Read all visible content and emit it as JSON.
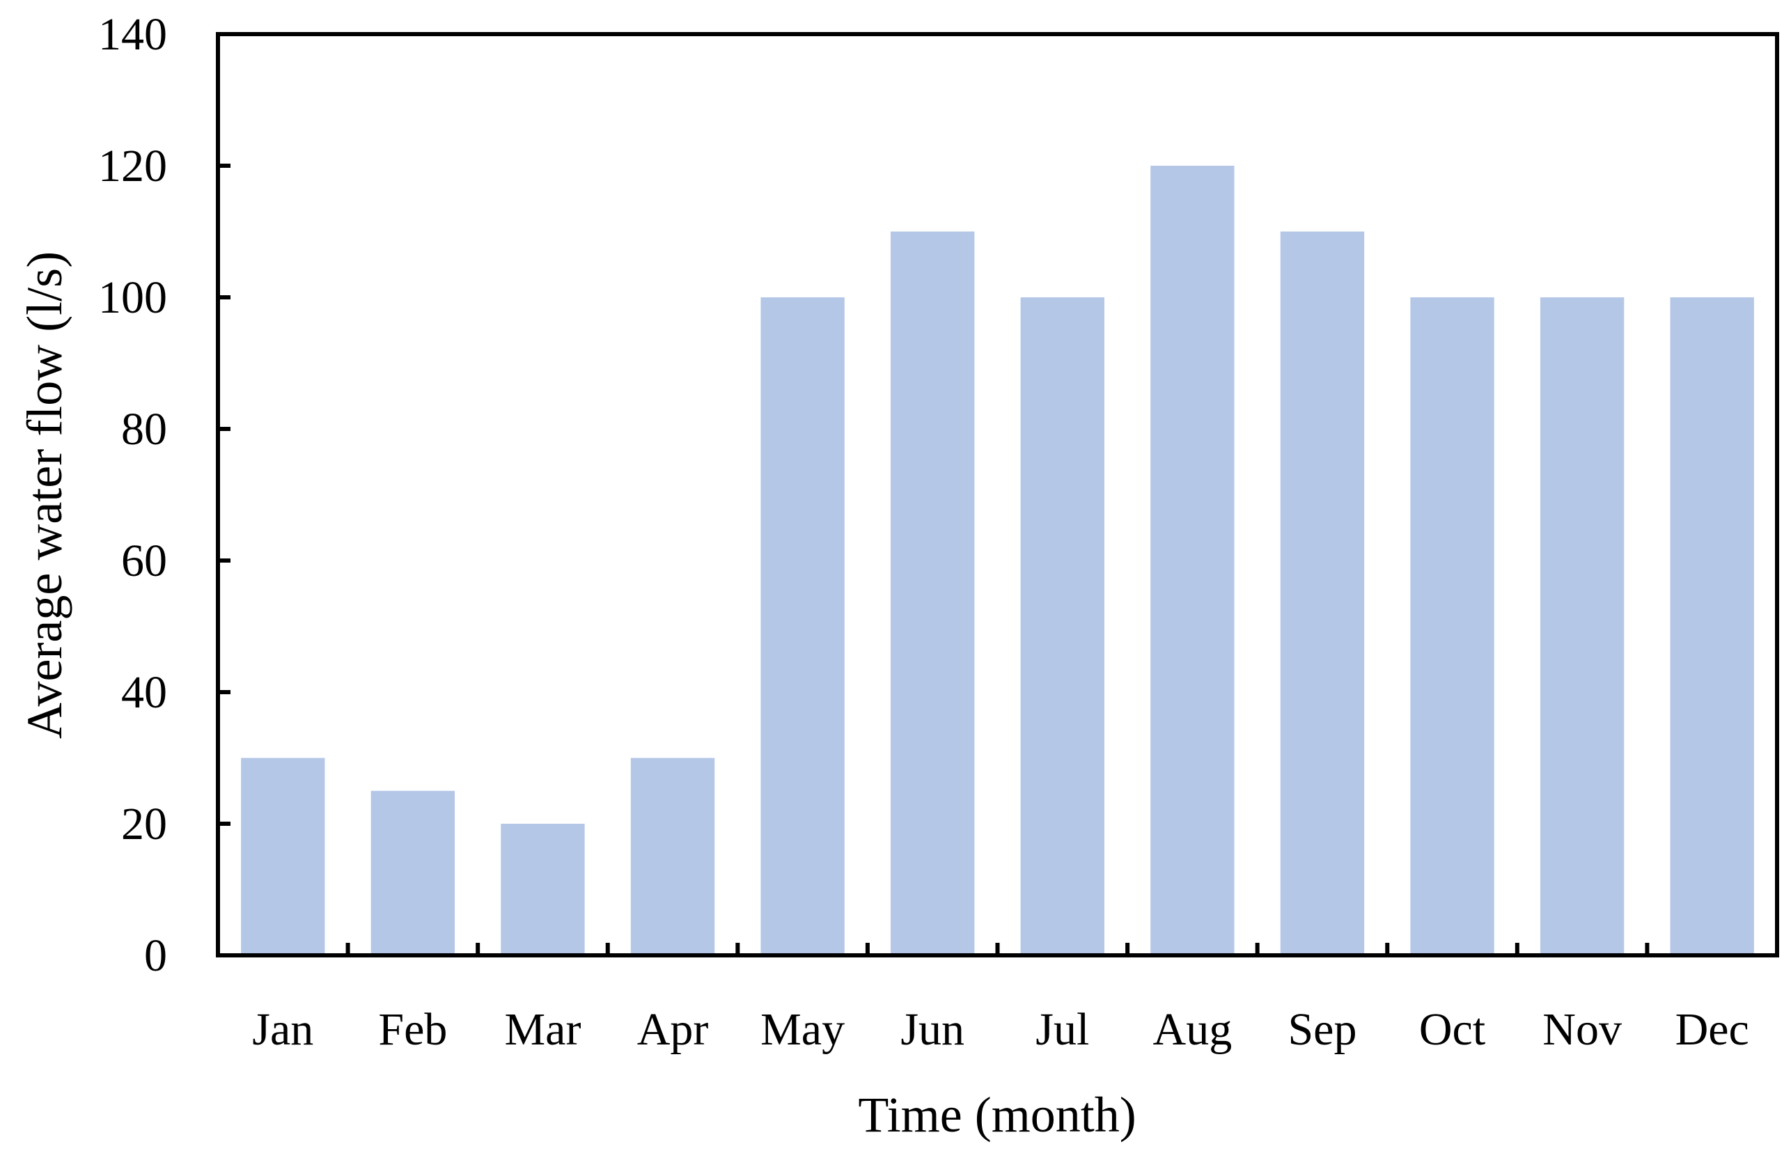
{
  "chart_data": {
    "type": "bar",
    "title": "",
    "xlabel": "Time (month)",
    "ylabel": "Average water flow (l/s)",
    "categories": [
      "Jan",
      "Feb",
      "Mar",
      "Apr",
      "May",
      "Jun",
      "Jul",
      "Aug",
      "Sep",
      "Oct",
      "Nov",
      "Dec"
    ],
    "values": [
      30,
      25,
      20,
      30,
      100,
      110,
      100,
      120,
      110,
      100,
      100,
      100
    ],
    "ylim": [
      0,
      140
    ],
    "yticks": [
      "0",
      "20",
      "40",
      "60",
      "80",
      "100",
      "120",
      "140"
    ],
    "grid": false,
    "legend": "none",
    "bar_color": "#B4C7E7"
  }
}
